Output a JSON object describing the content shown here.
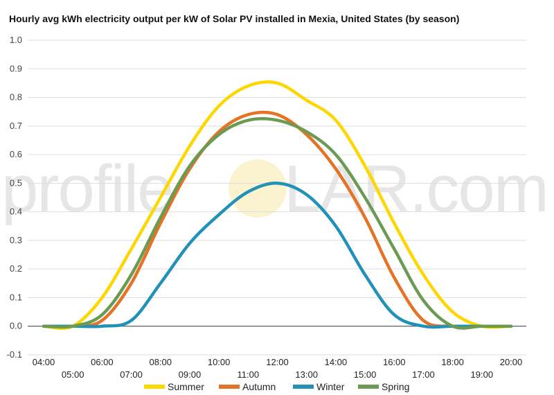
{
  "chart_data": {
    "type": "line",
    "title": "Hourly avg kWh electricity output per kW of Solar PV installed in Mexia, United States (by season)",
    "xlabel": "",
    "ylabel": "",
    "x": [
      "04:00",
      "05:00",
      "06:00",
      "07:00",
      "08:00",
      "09:00",
      "10:00",
      "11:00",
      "12:00",
      "13:00",
      "14:00",
      "15:00",
      "16:00",
      "17:00",
      "18:00",
      "19:00",
      "20:00"
    ],
    "ylim": [
      -0.1,
      1.0
    ],
    "yticks": [
      "-0.1",
      "0.0",
      "0.1",
      "0.2",
      "0.3",
      "0.4",
      "0.5",
      "0.6",
      "0.7",
      "0.8",
      "0.9",
      "1.0"
    ],
    "grid": true,
    "legend_position": "bottom",
    "watermark": {
      "left": "profile",
      "right": "LAR.com"
    },
    "series": [
      {
        "name": "Summer",
        "color": "#ffd700",
        "values": [
          0.0,
          0.0,
          0.1,
          0.27,
          0.45,
          0.63,
          0.77,
          0.84,
          0.85,
          0.79,
          0.72,
          0.56,
          0.36,
          0.18,
          0.05,
          0.0,
          0.0
        ]
      },
      {
        "name": "Autumn",
        "color": "#e57325",
        "values": [
          0.0,
          0.0,
          0.02,
          0.15,
          0.36,
          0.55,
          0.68,
          0.74,
          0.74,
          0.67,
          0.55,
          0.38,
          0.17,
          0.02,
          0.0,
          0.0,
          0.0
        ]
      },
      {
        "name": "Winter",
        "color": "#2291b8",
        "values": [
          0.0,
          0.0,
          0.0,
          0.02,
          0.15,
          0.29,
          0.39,
          0.47,
          0.5,
          0.46,
          0.35,
          0.18,
          0.04,
          0.0,
          0.0,
          0.0,
          0.0
        ]
      },
      {
        "name": "Spring",
        "color": "#6b9a52",
        "values": [
          0.0,
          0.0,
          0.04,
          0.18,
          0.38,
          0.56,
          0.67,
          0.72,
          0.72,
          0.68,
          0.6,
          0.45,
          0.27,
          0.09,
          0.0,
          0.0,
          0.0
        ]
      }
    ]
  }
}
